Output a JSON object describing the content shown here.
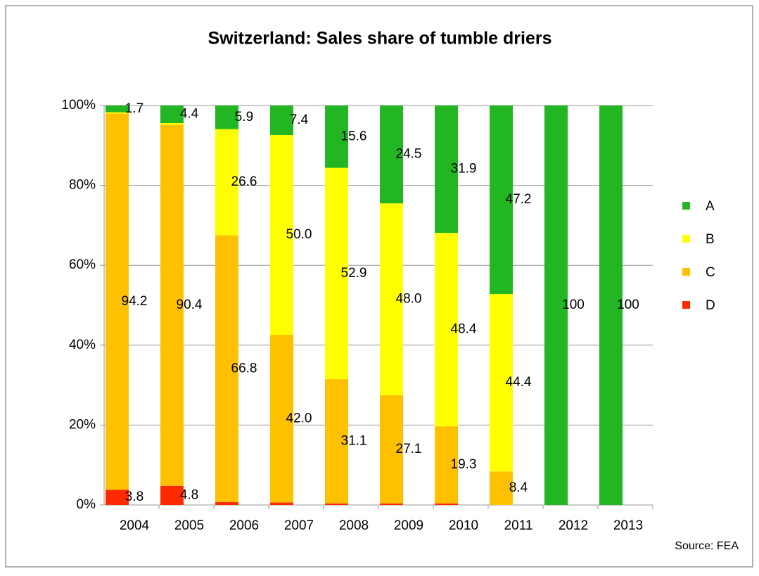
{
  "chart_data": {
    "type": "stacked_bar",
    "title": "Switzerland: Sales share of tumble driers",
    "source": "Source: FEA",
    "categories": [
      "2004",
      "2005",
      "2006",
      "2007",
      "2008",
      "2009",
      "2010",
      "2011",
      "2012",
      "2013"
    ],
    "series": [
      {
        "name": "D",
        "color": "#ff2a00",
        "values": [
          3.8,
          4.8,
          0.7,
          0.6,
          0.4,
          0.4,
          0.4,
          0,
          0,
          0
        ],
        "value_labels": [
          "3.8",
          "4.8",
          null,
          null,
          null,
          null,
          null,
          null,
          null,
          null
        ]
      },
      {
        "name": "C",
        "color": "#ffc000",
        "values": [
          94.2,
          90.4,
          66.8,
          42.0,
          31.1,
          27.1,
          19.3,
          8.4,
          0,
          0
        ],
        "value_labels": [
          "94.2",
          "90.4",
          "66.8",
          "42.0",
          "31.1",
          "27.1",
          "19.3",
          "8.4",
          null,
          null
        ]
      },
      {
        "name": "B",
        "color": "#ffff00",
        "values": [
          0.3,
          0.4,
          26.6,
          50.0,
          52.9,
          48.0,
          48.4,
          44.4,
          0,
          0
        ],
        "value_labels": [
          null,
          null,
          "26.6",
          "50.0",
          "52.9",
          "48.0",
          "48.4",
          "44.4",
          null,
          null
        ]
      },
      {
        "name": "A",
        "color": "#22b722",
        "values": [
          1.7,
          4.4,
          5.9,
          7.4,
          15.6,
          24.5,
          31.9,
          47.2,
          100,
          100
        ],
        "value_labels": [
          "1.7",
          "4.4",
          "5.9",
          "7.4",
          "15.6",
          "24.5",
          "31.9",
          "47.2",
          "100",
          "100"
        ]
      }
    ],
    "ylim": [
      0,
      100
    ],
    "yticks": [
      {
        "value": 0,
        "label": "0%"
      },
      {
        "value": 20,
        "label": "20%"
      },
      {
        "value": 40,
        "label": "40%"
      },
      {
        "value": 60,
        "label": "60%"
      },
      {
        "value": 80,
        "label": "80%"
      },
      {
        "value": 100,
        "label": "100%"
      }
    ],
    "grid": true,
    "legend": "right"
  }
}
